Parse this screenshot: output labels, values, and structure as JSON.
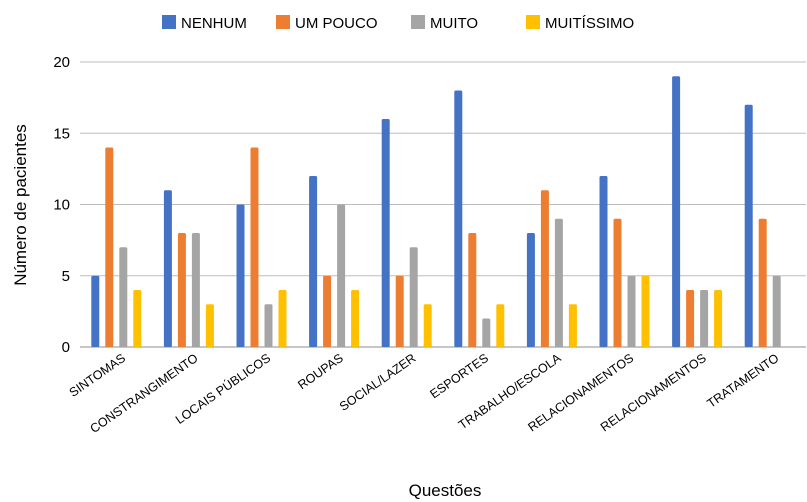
{
  "chart_data": {
    "type": "bar",
    "xlabel": "Questões",
    "ylabel": "Número de pacientes",
    "ylim": [
      0,
      20
    ],
    "yticks": [
      0,
      5,
      10,
      15,
      20
    ],
    "grid": true,
    "legend_position": "top",
    "categories": [
      "SINTOMAS",
      "CONSTRANGIMENTO",
      "LOCAIS PÚBLICOS",
      "ROUPAS",
      "SOCIAL/LAZER",
      "ESPORTES",
      "TRABALHO/ESCOLA",
      "RELACIONAMENTOS",
      "RELACIONAMENTOS",
      "TRATAMENTO"
    ],
    "series": [
      {
        "name": "NENHUM",
        "color": "#4472c4",
        "values": [
          5,
          11,
          10,
          12,
          16,
          18,
          8,
          12,
          19,
          17
        ]
      },
      {
        "name": "UM POUCO",
        "color": "#ed7d31",
        "values": [
          14,
          8,
          14,
          5,
          5,
          8,
          11,
          9,
          4,
          9
        ]
      },
      {
        "name": "MUITO",
        "color": "#a5a5a5",
        "values": [
          7,
          8,
          3,
          10,
          7,
          2,
          9,
          5,
          4,
          5
        ]
      },
      {
        "name": "MUITÍSSIMO",
        "color": "#ffc000",
        "values": [
          4,
          3,
          4,
          4,
          3,
          3,
          3,
          5,
          4,
          null
        ]
      }
    ]
  }
}
